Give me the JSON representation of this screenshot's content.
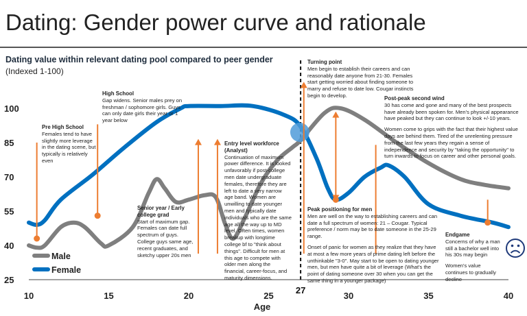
{
  "page": {
    "title": "Dating: Gender power curve and rationale",
    "subtitle": "Dating value within relevant dating pool compared to peer gender",
    "subtitle2": "(Indexed 1-100)"
  },
  "chart_data": {
    "type": "line",
    "xlabel": "Age",
    "ylabel": "",
    "xlim": [
      10,
      40
    ],
    "ylim": [
      25,
      100
    ],
    "xticks": [
      10,
      15,
      20,
      25,
      30,
      35,
      40
    ],
    "yticks": [
      25,
      40,
      55,
      70,
      85,
      100
    ],
    "turning_point_age": "27",
    "series": [
      {
        "name": "Male",
        "color": "#7f7f7f",
        "points": [
          [
            10,
            40
          ],
          [
            10.5,
            39
          ],
          [
            11,
            40
          ],
          [
            12,
            48
          ],
          [
            12.8,
            50
          ],
          [
            13.5,
            48
          ],
          [
            14.5,
            41
          ],
          [
            15,
            40
          ],
          [
            16.5,
            48
          ],
          [
            17.5,
            63
          ],
          [
            18,
            69
          ],
          [
            18.5,
            65
          ],
          [
            19.2,
            59
          ],
          [
            20,
            60
          ],
          [
            21,
            62
          ],
          [
            21.7,
            61
          ],
          [
            22.3,
            49
          ],
          [
            22.8,
            43
          ],
          [
            23.5,
            52
          ],
          [
            24.5,
            67
          ],
          [
            25.5,
            77
          ],
          [
            26.5,
            83
          ],
          [
            27,
            86
          ],
          [
            28.5,
            98
          ],
          [
            29.5,
            100
          ],
          [
            31,
            95
          ],
          [
            33,
            85
          ],
          [
            35,
            76
          ],
          [
            37,
            69
          ],
          [
            38.5,
            66.5
          ],
          [
            40,
            65
          ]
        ]
      },
      {
        "name": "Female",
        "color": "#0070c0",
        "points": [
          [
            10,
            50
          ],
          [
            10.5,
            49
          ],
          [
            11,
            51
          ],
          [
            12,
            60
          ],
          [
            14,
            71
          ],
          [
            16,
            83
          ],
          [
            18,
            94
          ],
          [
            19.5,
            100
          ],
          [
            20,
            101
          ],
          [
            22,
            101
          ],
          [
            24,
            101
          ],
          [
            26,
            97
          ],
          [
            27,
            92
          ],
          [
            28,
            78
          ],
          [
            28.7,
            65
          ],
          [
            29.2,
            60
          ],
          [
            30,
            63
          ],
          [
            31,
            70
          ],
          [
            32,
            74
          ],
          [
            32.5,
            75
          ],
          [
            33.5,
            70
          ],
          [
            35,
            58
          ],
          [
            37,
            53
          ],
          [
            39,
            50
          ],
          [
            40,
            48
          ]
        ]
      }
    ],
    "legend": [
      {
        "name": "Male",
        "color": "#7f7f7f"
      },
      {
        "name": "Female",
        "color": "#0070c0"
      }
    ],
    "markers": [
      {
        "age": 10.5,
        "top": 85,
        "value": 43
      },
      {
        "age": 14.3,
        "top": 93,
        "value": 53
      },
      {
        "age": 20.6,
        "top": 86,
        "value": null
      },
      {
        "age": 21.8,
        "top": 86,
        "value": null
      },
      {
        "age": 27.2,
        "top": 111,
        "value": null
      },
      {
        "age": 29.2,
        "top": 98,
        "value": 60
      },
      {
        "age": 31.7,
        "top": 84,
        "value": null
      },
      {
        "age": 38.7,
        "top": 60,
        "value": 50
      }
    ],
    "annotations": [
      {
        "title": "Pre High School",
        "text": "Females tend to have slightly more leverage in the dating scene, but typically is relatively even"
      },
      {
        "title": "High School",
        "text": "Gap widens.  Senior males prey on freshman / sophomore girls.  Guys can only date girls their year or 1 year below"
      },
      {
        "title": "Senior year / Early college grad",
        "text": "Start of maximum gap. Females can date full spectrum of guys. College guys same age, recent graduates, and sketchy upper 20s men"
      },
      {
        "title": "Entry level workforce (Analyst)",
        "text": "Continuation of maximum power difference. It is looked unfavorably if post-college men date undergraduate females, therefore they are left to date a very narrow age band.  Women are unwilling to date younger men and typically date individuals who are the same age all the way up to MD level.  Often times, women breakup with longtime college bf to \"think about things\". Difficult for men at this age to compete with older men along the financial, career-focus, and maturity dimensions."
      },
      {
        "title": "Turning point",
        "text": "Men begin to establish their careers and can reasonably date anyone from 21-30.  Females start getting worried about finding someone to marry and refuse to date low.  Cougar instincts begin to develop."
      },
      {
        "title": "Post-peak second wind",
        "text": "30 has come and gone and many of the best prospects have already been spoken for.  Men's physical appearance have peaked but they can continue to look +/-10 years.",
        "text2": "Women come to grips with the fact that their highest value days are behind them.  Tired of the unrelenting pressure from the last few years they regain a sense of independence and security by \"taking the opportunity\" to turn inwards to focus on career and other personal goals."
      },
      {
        "title": "Peak positioning for men",
        "text": "Men are well on the way to establishing careers and can date a full spectrum of women: 21 – Cougar.  Typical preference / norm may be to date someone in the 25-29 range.",
        "text2": "Onset of panic for women as they realize that they have at most a few more years of prime dating left before the unthinkable \"3-0\".  May start to be open to dating younger men, but men have quite a bit of leverage (What's the point of dating someone over 30 when you can get the same thing in a younger package)"
      },
      {
        "title": "Endgame",
        "text": "Concerns of why a man still a bachelor well into his 30s may begin",
        "text2": "Women's value continues to gradually decline"
      }
    ],
    "colors": {
      "accent": "#ed7d31",
      "highlight": "#4f9bd9"
    }
  }
}
